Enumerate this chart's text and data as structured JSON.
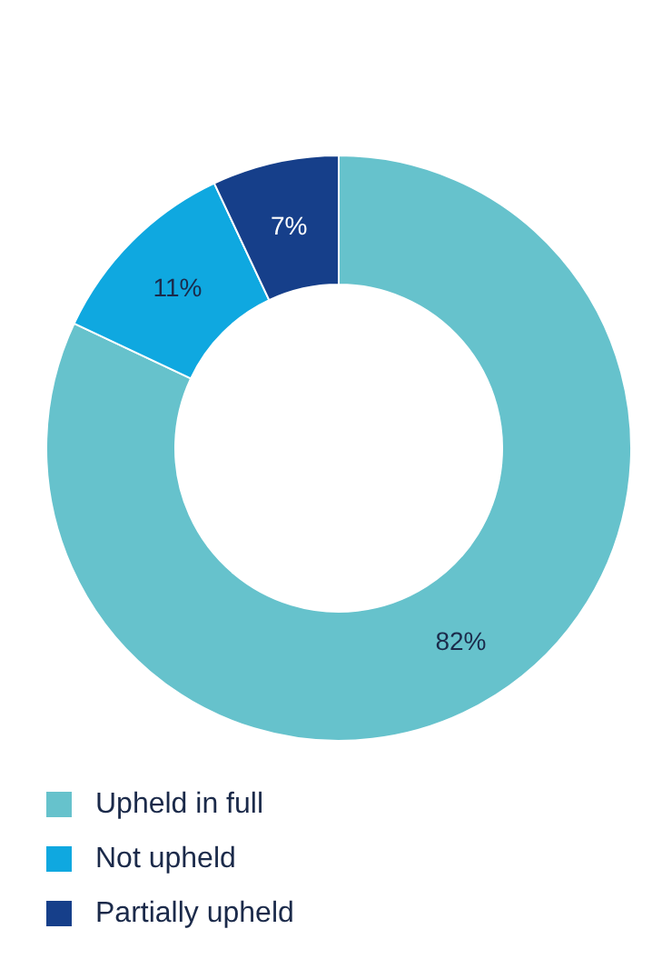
{
  "chart_data": {
    "type": "donut",
    "categories": [
      "Upheld in full",
      "Not upheld",
      "Partially upheld"
    ],
    "values": [
      82,
      11,
      7
    ],
    "colors": [
      "#66c2cc",
      "#0fa8e0",
      "#163f8a"
    ],
    "value_labels": [
      "82%",
      "11%",
      "7%"
    ],
    "legend": "bottom"
  }
}
